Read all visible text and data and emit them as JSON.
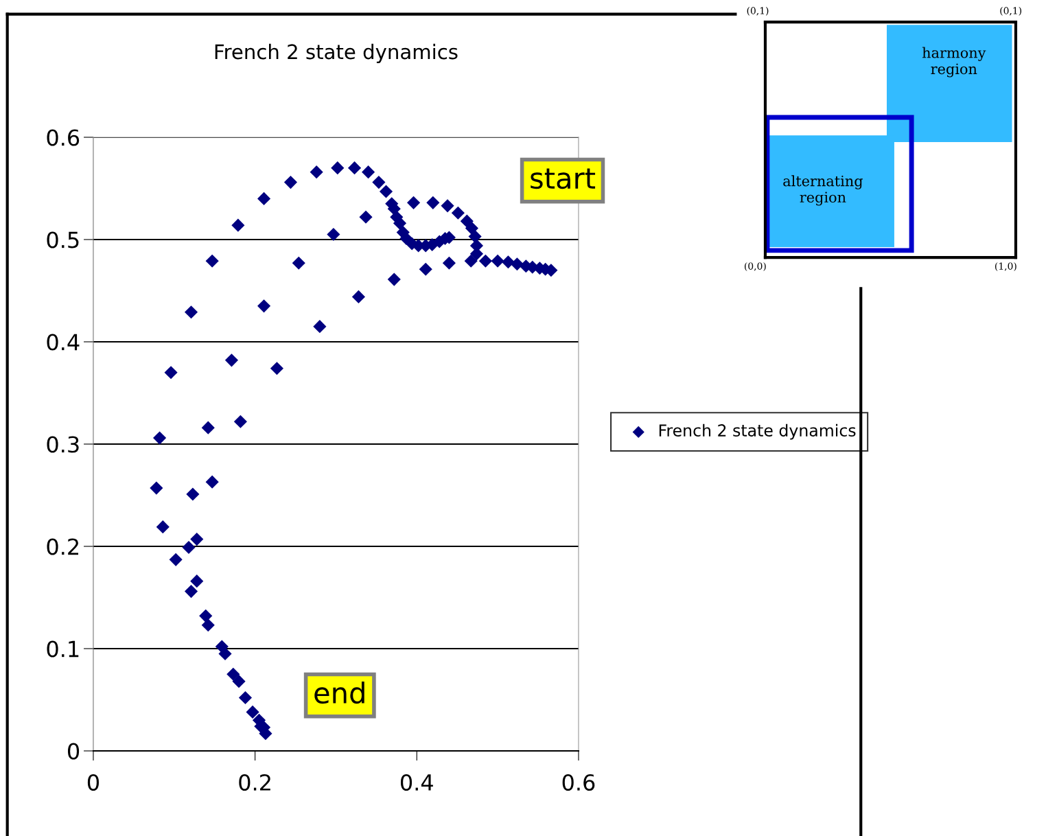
{
  "chart_data": [
    {
      "type": "scatter",
      "title": "French 2 state dynamics",
      "series": [
        {
          "name": "French 2 state dynamics",
          "color": "#000080",
          "x": [
            0.566,
            0.559,
            0.552,
            0.543,
            0.535,
            0.524,
            0.513,
            0.5,
            0.485,
            0.467,
            0.474,
            0.474,
            0.472,
            0.468,
            0.462,
            0.451,
            0.438,
            0.42,
            0.396,
            0.44,
            0.411,
            0.372,
            0.328,
            0.28,
            0.227,
            0.182,
            0.142,
            0.147,
            0.123,
            0.128,
            0.118,
            0.102,
            0.086,
            0.078,
            0.082,
            0.096,
            0.121,
            0.147,
            0.179,
            0.211,
            0.244,
            0.276,
            0.302,
            0.323,
            0.34,
            0.353,
            0.362,
            0.369,
            0.372,
            0.375,
            0.379,
            0.383,
            0.387,
            0.394,
            0.402,
            0.411,
            0.419,
            0.428,
            0.435,
            0.44,
            0.337,
            0.297,
            0.254,
            0.211,
            0.171,
            0.128,
            0.121,
            0.139,
            0.142,
            0.159,
            0.163,
            0.173,
            0.18,
            0.188,
            0.197,
            0.205,
            0.211,
            0.213,
            0.207
          ],
          "values": [
            0.47,
            0.471,
            0.472,
            0.473,
            0.474,
            0.476,
            0.478,
            0.479,
            0.479,
            0.479,
            0.486,
            0.494,
            0.503,
            0.511,
            0.518,
            0.526,
            0.533,
            0.536,
            0.536,
            0.477,
            0.471,
            0.461,
            0.444,
            0.415,
            0.374,
            0.322,
            0.316,
            0.263,
            0.251,
            0.207,
            0.199,
            0.187,
            0.219,
            0.257,
            0.306,
            0.37,
            0.429,
            0.479,
            0.514,
            0.54,
            0.556,
            0.566,
            0.57,
            0.57,
            0.566,
            0.556,
            0.547,
            0.535,
            0.53,
            0.522,
            0.516,
            0.507,
            0.501,
            0.496,
            0.494,
            0.494,
            0.495,
            0.498,
            0.501,
            0.502,
            0.522,
            0.505,
            0.477,
            0.435,
            0.382,
            0.166,
            0.156,
            0.132,
            0.123,
            0.102,
            0.095,
            0.075,
            0.068,
            0.052,
            0.038,
            0.03,
            0.023,
            0.017,
            0.024
          ]
        }
      ],
      "xlim": [
        0,
        0.6
      ],
      "ylim": [
        0,
        0.6
      ],
      "xticks": [
        0,
        0.2,
        0.4,
        0.6
      ],
      "yticks": [
        0,
        0.1,
        0.2,
        0.3,
        0.4,
        0.5,
        0.6
      ],
      "grid": "y",
      "legend": "right",
      "marker": "diamond",
      "annotations": [
        {
          "text": "start",
          "x": 0.566,
          "y": 0.47
        },
        {
          "text": "end",
          "x": 0.213,
          "y": 0.017
        }
      ]
    },
    {
      "type": "other",
      "annotations": [
        "harmony\nregion",
        "alternating\nregion",
        "(0,1)",
        "(0,1)",
        "(0,0)",
        "(1,0)"
      ]
    }
  ]
}
